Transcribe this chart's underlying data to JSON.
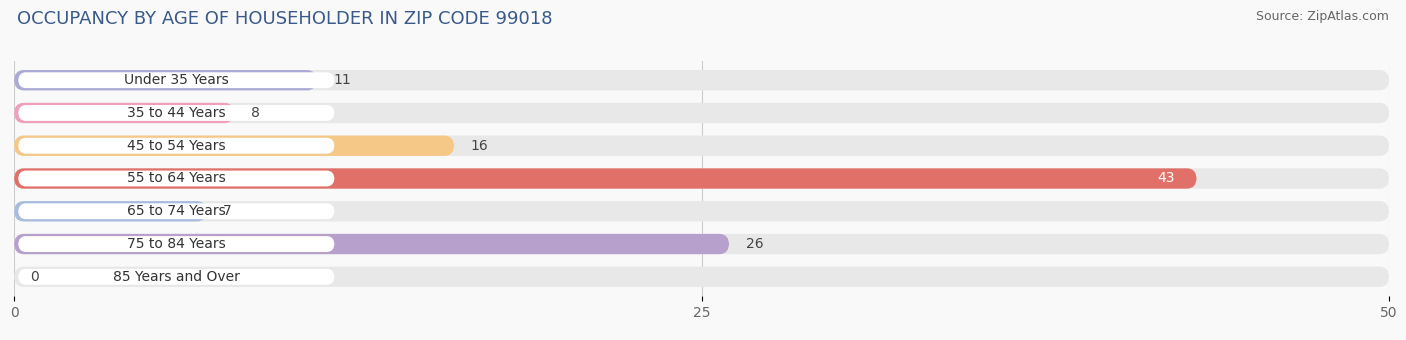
{
  "title": "OCCUPANCY BY AGE OF HOUSEHOLDER IN ZIP CODE 99018",
  "source": "Source: ZipAtlas.com",
  "categories": [
    "Under 35 Years",
    "35 to 44 Years",
    "45 to 54 Years",
    "55 to 64 Years",
    "65 to 74 Years",
    "75 to 84 Years",
    "85 Years and Over"
  ],
  "values": [
    11,
    8,
    16,
    43,
    7,
    26,
    0
  ],
  "bar_colors": [
    "#aaaad4",
    "#f0a0b8",
    "#f5c888",
    "#e07068",
    "#a8bce0",
    "#b8a0cc",
    "#7cccc8"
  ],
  "bar_bg_color": "#e8e8e8",
  "label_bg_color": "#ffffff",
  "xlim": [
    0,
    50
  ],
  "xticks": [
    0,
    25,
    50
  ],
  "title_fontsize": 13,
  "source_fontsize": 9,
  "label_fontsize": 10,
  "value_fontsize": 10,
  "bar_height": 0.62,
  "background_color": "#f9f9f9",
  "value_label_color_inside": "#ffffff",
  "value_label_color_outside": "#444444"
}
